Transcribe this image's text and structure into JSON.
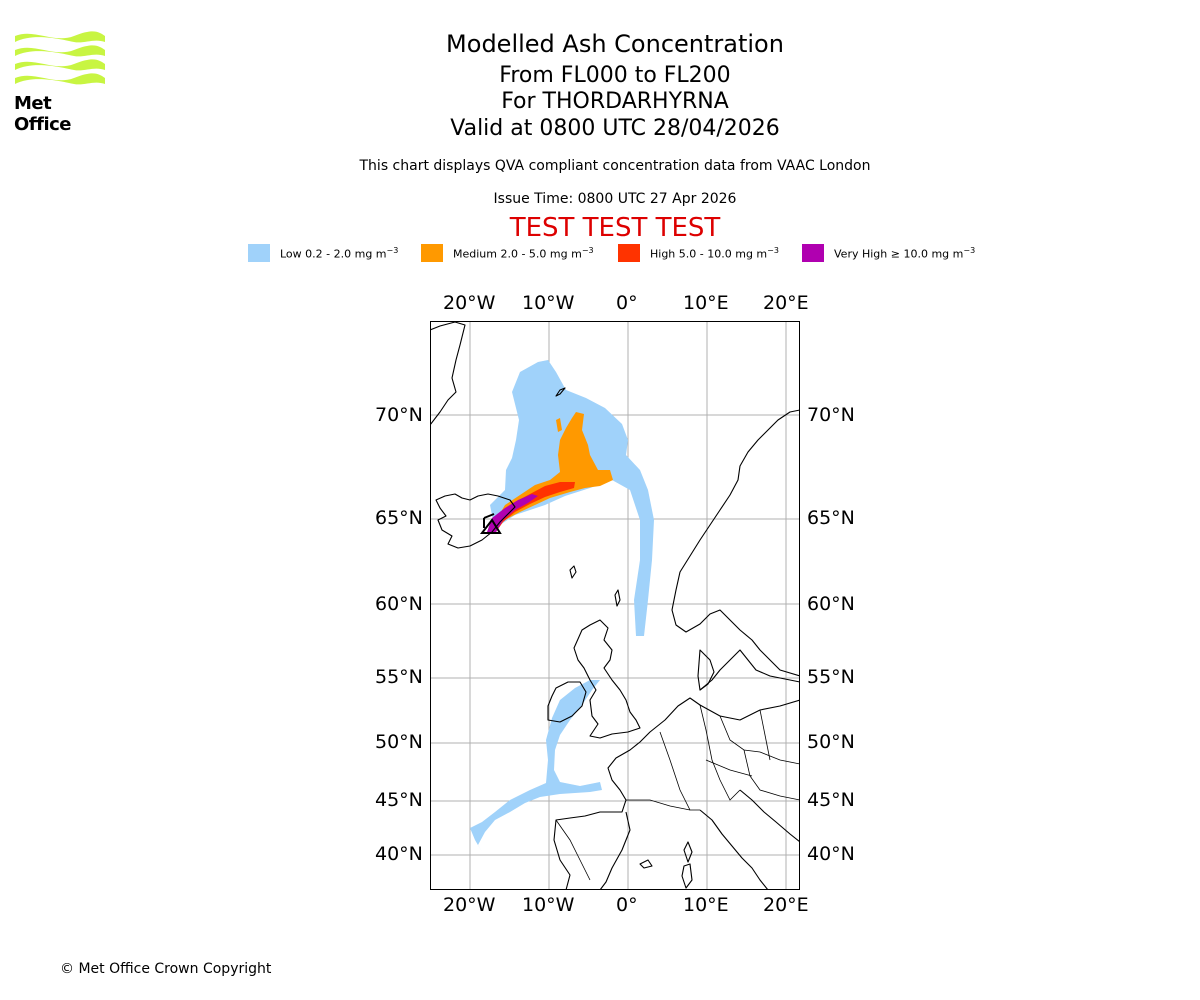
{
  "logo": {
    "text": "Met Office",
    "color": "#c8f542"
  },
  "title": {
    "main": "Modelled Ash Concentration",
    "levels": "From FL000 to FL200",
    "volcano": "For THORDARHYRNA",
    "valid": "Valid at 0800 UTC 28/04/2026"
  },
  "subtitle": "This chart displays QVA compliant concentration data from VAAC London",
  "issue_time": "Issue Time: 0800 UTC 27 Apr 2026",
  "test_banner": {
    "text": "TEST TEST TEST",
    "color": "#dd0000"
  },
  "legend": [
    {
      "label": "Low 0.2 - 2.0 mg m",
      "sup": "−3",
      "color": "#a0d2fa"
    },
    {
      "label": "Medium 2.0 - 5.0 mg m",
      "sup": "−3",
      "color": "#ff9900"
    },
    {
      "label": "High 5.0 - 10.0 mg m",
      "sup": "−3",
      "color": "#ff3300"
    },
    {
      "label": "Very High  ≥  10.0 mg m",
      "sup": "−3",
      "color": "#b000b0"
    }
  ],
  "axes": {
    "lon_ticks": [
      "20°W",
      "10°W",
      "0°",
      "10°E",
      "20°E"
    ],
    "lat_ticks": [
      "70°N",
      "65°N",
      "60°N",
      "55°N",
      "50°N",
      "45°N",
      "40°N"
    ]
  },
  "copyright": "© Met Office Crown Copyright"
}
